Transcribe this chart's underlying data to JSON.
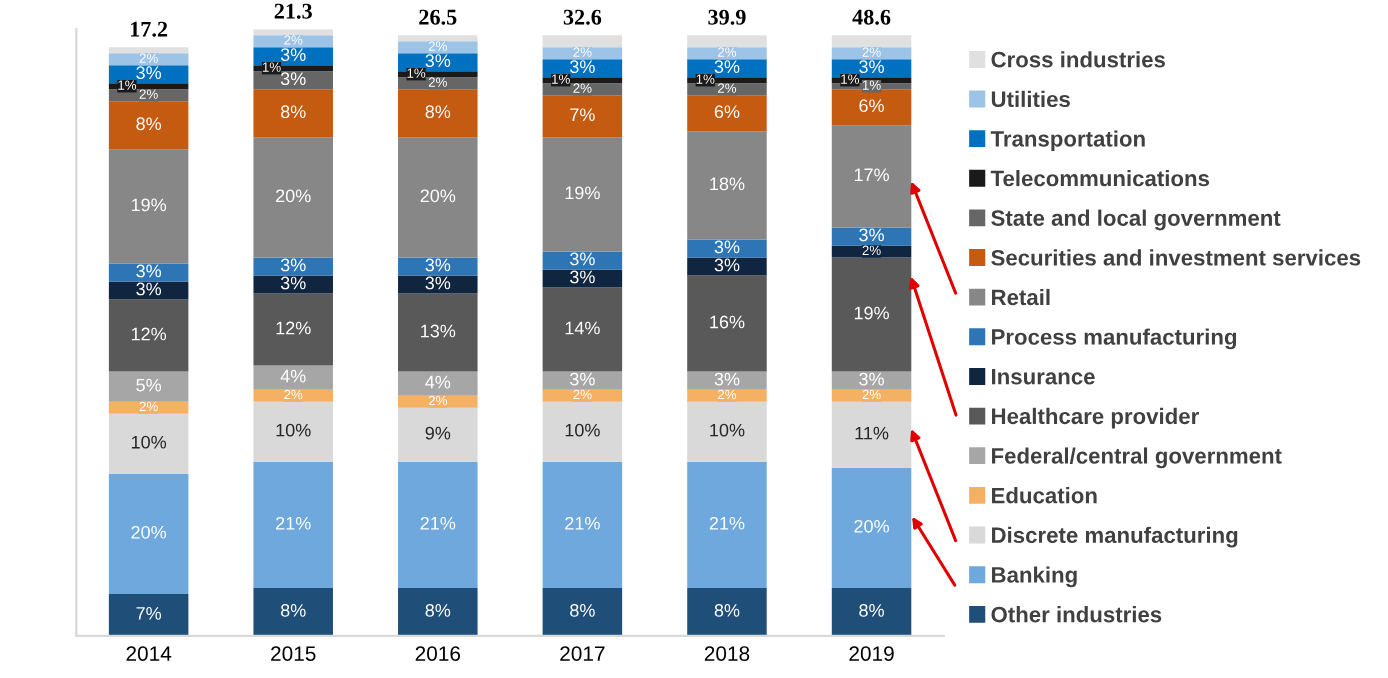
{
  "chart_data": {
    "type": "bar",
    "stacked": true,
    "categories": [
      "2014",
      "2015",
      "2016",
      "2017",
      "2018",
      "2019"
    ],
    "annotations": [
      "17.2",
      "21.3",
      "26.5",
      "32.6",
      "39.9",
      "48.6"
    ],
    "legend": "right",
    "grid": false,
    "series": [
      {
        "name": "Other industries",
        "color": "#1f4e79",
        "values": [
          7,
          8,
          8,
          8,
          8,
          8
        ],
        "value_labels": [
          "7%",
          "8%",
          "8%",
          "8%",
          "8%",
          "8%"
        ]
      },
      {
        "name": "Banking",
        "color": "#6fa8dc",
        "values": [
          20,
          21,
          21,
          21,
          21,
          20
        ],
        "value_labels": [
          "20%",
          "21%",
          "21%",
          "21%",
          "21%",
          "20%"
        ]
      },
      {
        "name": "Discrete manufacturing",
        "color": "#d9d9d9",
        "values": [
          10,
          10,
          9,
          10,
          10,
          11
        ],
        "value_labels": [
          "10%",
          "10%",
          "9%",
          "10%",
          "10%",
          "11%"
        ]
      },
      {
        "name": "Education",
        "color": "#f4b063",
        "values": [
          2,
          2,
          2,
          2,
          2,
          2
        ],
        "value_labels": [
          "2%",
          "2%",
          "2%",
          "2%",
          "2%",
          "2%"
        ]
      },
      {
        "name": "Federal/central government",
        "color": "#a6a6a6",
        "values": [
          5,
          4,
          4,
          3,
          3,
          3
        ],
        "value_labels": [
          "5%",
          "4%",
          "4%",
          "3%",
          "3%",
          "3%"
        ]
      },
      {
        "name": "Healthcare provider",
        "color": "#595959",
        "values": [
          12,
          12,
          13,
          14,
          16,
          19
        ],
        "value_labels": [
          "12%",
          "12%",
          "13%",
          "14%",
          "16%",
          "19%"
        ]
      },
      {
        "name": "Insurance",
        "color": "#10253f",
        "values": [
          3,
          3,
          3,
          3,
          3,
          2
        ],
        "value_labels": [
          "3%",
          "3%",
          "3%",
          "3%",
          "3%",
          "2%"
        ]
      },
      {
        "name": "Process manufacturing",
        "color": "#2e75b6",
        "values": [
          3,
          3,
          3,
          3,
          3,
          3
        ],
        "value_labels": [
          "3%",
          "3%",
          "3%",
          "3%",
          "3%",
          "3%"
        ]
      },
      {
        "name": "Retail",
        "color": "#878787",
        "values": [
          19,
          20,
          20,
          19,
          18,
          17
        ],
        "value_labels": [
          "19%",
          "20%",
          "20%",
          "19%",
          "18%",
          "17%"
        ]
      },
      {
        "name": "Securities and investment services",
        "color": "#c55a11",
        "values": [
          8,
          8,
          8,
          7,
          6,
          6
        ],
        "value_labels": [
          "8%",
          "8%",
          "8%",
          "7%",
          "6%",
          "6%"
        ]
      },
      {
        "name": "State and local government",
        "color": "#666666",
        "values": [
          2,
          3,
          2,
          2,
          2,
          1
        ],
        "value_labels": [
          "2%",
          "3%",
          "2%",
          "2%",
          "2%",
          "1%"
        ]
      },
      {
        "name": "Telecommunications",
        "color": "#1a1a1a",
        "values": [
          1,
          1,
          1,
          1,
          1,
          1
        ],
        "value_labels": [
          "1%",
          "1%",
          "1%",
          "1%",
          "1%",
          "1%"
        ]
      },
      {
        "name": "Transportation",
        "color": "#0070c0",
        "values": [
          3,
          3,
          3,
          3,
          3,
          3
        ],
        "value_labels": [
          "3%",
          "3%",
          "3%",
          "3%",
          "3%",
          "3%"
        ]
      },
      {
        "name": "Utilities",
        "color": "#9dc3e6",
        "values": [
          2,
          2,
          2,
          2,
          2,
          2
        ],
        "value_labels": [
          "2%",
          "2%",
          "2%",
          "2%",
          "2%",
          "2%"
        ]
      },
      {
        "name": "Cross industries",
        "color": "#e0e0e0",
        "values": [
          1,
          1,
          1,
          2,
          2,
          2
        ],
        "value_labels": [
          null,
          null,
          null,
          null,
          null,
          null
        ]
      }
    ]
  }
}
